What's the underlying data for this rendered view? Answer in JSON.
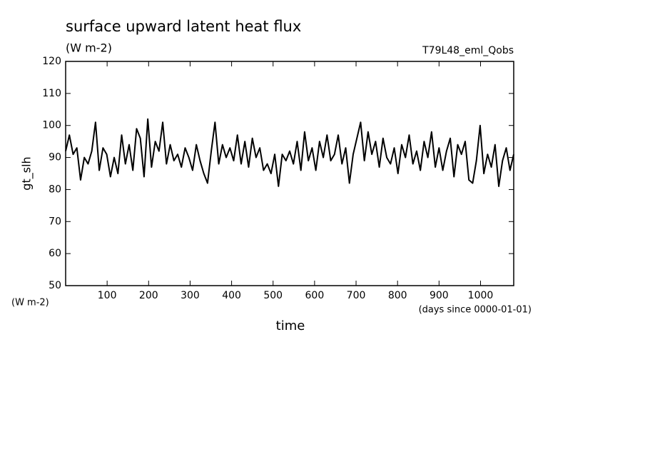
{
  "chart_data": {
    "type": "line",
    "title": "surface upward latent heat flux",
    "subtitle": "(W m-2)",
    "annotation": "T79L48_eml_Qobs",
    "y_label": "gt_slh",
    "y_units": "(W m-2)",
    "x_label": "time",
    "x_units": "(days since 0000-01-01)",
    "color": "#000000",
    "x": [
      0,
      9,
      18,
      27,
      36,
      45,
      54,
      63,
      72,
      81,
      90,
      99,
      108,
      117,
      126,
      135,
      144,
      153,
      162,
      171,
      180,
      189,
      198,
      207,
      216,
      225,
      234,
      243,
      252,
      261,
      270,
      279,
      288,
      297,
      306,
      315,
      324,
      333,
      342,
      351,
      360,
      369,
      378,
      387,
      396,
      405,
      414,
      423,
      432,
      441,
      450,
      459,
      468,
      477,
      486,
      495,
      504,
      513,
      522,
      531,
      540,
      549,
      558,
      567,
      576,
      585,
      594,
      603,
      612,
      621,
      630,
      639,
      648,
      657,
      666,
      675,
      684,
      693,
      702,
      711,
      720,
      729,
      738,
      747,
      756,
      765,
      774,
      783,
      792,
      801,
      810,
      819,
      828,
      837,
      846,
      855,
      864,
      873,
      882,
      891,
      900,
      909,
      918,
      927,
      936,
      945,
      954,
      963,
      972,
      981,
      990,
      999,
      1008,
      1017,
      1026,
      1035,
      1044,
      1053,
      1062,
      1071,
      1080
    ],
    "values": [
      92,
      97,
      91,
      93,
      83,
      90,
      88,
      92,
      101,
      86,
      93,
      91,
      84,
      90,
      85,
      97,
      88,
      94,
      86,
      99,
      96,
      84,
      102,
      87,
      95,
      92,
      101,
      88,
      94,
      89,
      91,
      87,
      93,
      90,
      86,
      94,
      89,
      85,
      82,
      92,
      101,
      88,
      94,
      90,
      93,
      89,
      97,
      88,
      95,
      87,
      96,
      90,
      93,
      86,
      88,
      85,
      91,
      81,
      91,
      89,
      92,
      88,
      95,
      86,
      98,
      89,
      93,
      86,
      95,
      90,
      97,
      89,
      91,
      97,
      88,
      93,
      82,
      91,
      96,
      101,
      89,
      98,
      91,
      95,
      87,
      96,
      90,
      88,
      93,
      85,
      94,
      90,
      97,
      88,
      92,
      86,
      95,
      90,
      98,
      87,
      93,
      86,
      92,
      96,
      84,
      94,
      91,
      95,
      83,
      82,
      89,
      100,
      85,
      91,
      87,
      94,
      81,
      89,
      93,
      86,
      91
    ],
    "xlim": [
      0,
      1080
    ],
    "ylim": [
      50,
      120
    ],
    "xticks": [
      100,
      200,
      300,
      400,
      500,
      600,
      700,
      800,
      900,
      1000
    ],
    "yticks": [
      50,
      60,
      70,
      80,
      90,
      100,
      110,
      120
    ]
  }
}
